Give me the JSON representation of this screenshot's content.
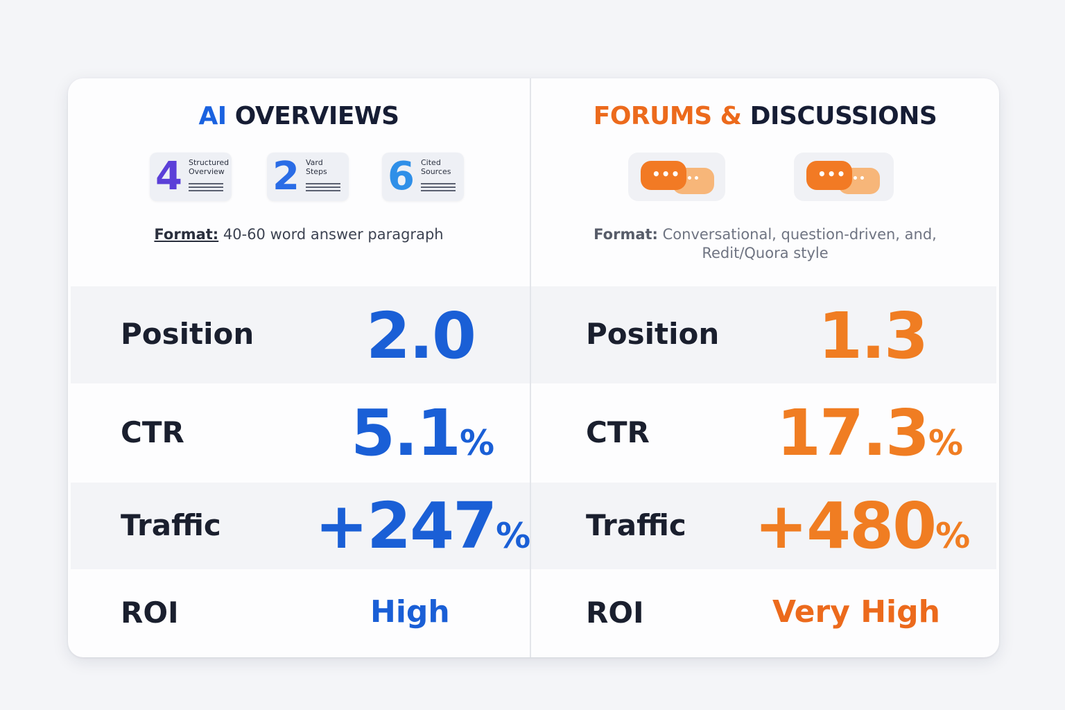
{
  "left": {
    "title_accent": "AI",
    "title_rest": "OVERVIEWS",
    "accent_color": "#1a62e0",
    "icons": [
      {
        "number": "4",
        "label_top": "Structured",
        "label_bottom": "Overview"
      },
      {
        "number": "2",
        "label_top": "Vard",
        "label_bottom": "Steps"
      },
      {
        "number": "6",
        "label_top": "Cited",
        "label_bottom": "Sources"
      }
    ],
    "format_label": "Format:",
    "format_text": "40-60 word answer paragraph",
    "metrics": {
      "position": {
        "label": "Position",
        "value": "2.0"
      },
      "ctr": {
        "label": "CTR",
        "value": "5.1",
        "unit": "%"
      },
      "traffic": {
        "label": "Traffic",
        "value": "+247",
        "unit": "%"
      },
      "roi": {
        "label": "ROI",
        "value": "High"
      }
    }
  },
  "right": {
    "title_accent": "FORUMS &",
    "title_rest": "DISCUSSIONS",
    "accent_color": "#ec6a1c",
    "chat_dots_front": "•••",
    "chat_dots_back": "••",
    "format_label": "Format:",
    "format_text_line1": "Conversational, question-driven, and,",
    "format_text_line2": "Redit/Quora style",
    "metrics": {
      "position": {
        "label": "Position",
        "value": "1.3"
      },
      "ctr": {
        "label": "CTR",
        "value": "17.3",
        "unit": "%"
      },
      "traffic": {
        "label": "Traffic",
        "value": "+480",
        "unit": "%"
      },
      "roi": {
        "label": "ROI",
        "value": "Very High"
      }
    }
  }
}
